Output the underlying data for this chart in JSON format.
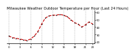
{
  "title": "Milwaukee Weather Outdoor Temperature per Hour (Last 24 Hours)",
  "hours": [
    0,
    1,
    2,
    3,
    4,
    5,
    6,
    7,
    8,
    9,
    10,
    11,
    12,
    13,
    14,
    15,
    16,
    17,
    18,
    19,
    20,
    21,
    22,
    23
  ],
  "temps": [
    28,
    26,
    25,
    24,
    23,
    22,
    24,
    28,
    34,
    44,
    52,
    55,
    56,
    56,
    57,
    56,
    54,
    50,
    46,
    44,
    40,
    43,
    47,
    44
  ],
  "line_color": "#cc0000",
  "marker_color": "#000000",
  "background_color": "#ffffff",
  "grid_color": "#999999",
  "ylim": [
    18,
    63
  ],
  "ytick_vals": [
    20,
    30,
    40,
    50,
    60
  ],
  "ytick_labels": [
    "20",
    "30",
    "40",
    "50",
    "60"
  ],
  "xtick_vals": [
    0,
    3,
    6,
    9,
    12,
    15,
    18,
    21,
    23
  ],
  "xtick_labels": [
    "0",
    "3",
    "6",
    "9",
    "12",
    "15",
    "18",
    "21",
    "23"
  ],
  "title_fontsize": 3.8,
  "tick_fontsize": 2.8,
  "line_width": 0.8,
  "marker_size": 1.5
}
